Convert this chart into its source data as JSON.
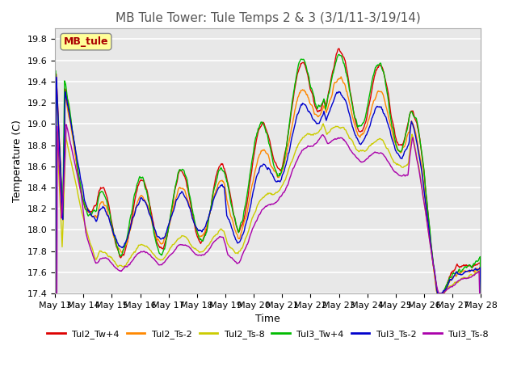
{
  "title": "MB Tule Tower: Tule Temps 2 & 3 (3/1/11-3/19/14)",
  "xlabel": "Time",
  "ylabel": "Temperature (C)",
  "legend_box_label": "MB_tule",
  "ylim": [
    17.4,
    19.9
  ],
  "yticks": [
    17.4,
    17.6,
    17.8,
    18.0,
    18.2,
    18.4,
    18.6,
    18.8,
    19.0,
    19.2,
    19.4,
    19.6,
    19.8
  ],
  "xtick_labels": [
    "May 13",
    "May 14",
    "May 15",
    "May 16",
    "May 17",
    "May 18",
    "May 19",
    "May 20",
    "May 21",
    "May 22",
    "May 23",
    "May 24",
    "May 25",
    "May 26",
    "May 27",
    "May 28"
  ],
  "series_colors": {
    "Tul2_Tw+4": "#dd0000",
    "Tul2_Ts-2": "#ff8800",
    "Tul2_Ts-8": "#cccc00",
    "Tul3_Tw+4": "#00bb00",
    "Tul3_Ts-2": "#0000cc",
    "Tul3_Ts-8": "#aa00aa"
  },
  "background_color": "#e8e8e8",
  "plot_bg_color": "#e8e8e8",
  "title_fontsize": 11,
  "axis_fontsize": 9,
  "tick_fontsize": 8
}
